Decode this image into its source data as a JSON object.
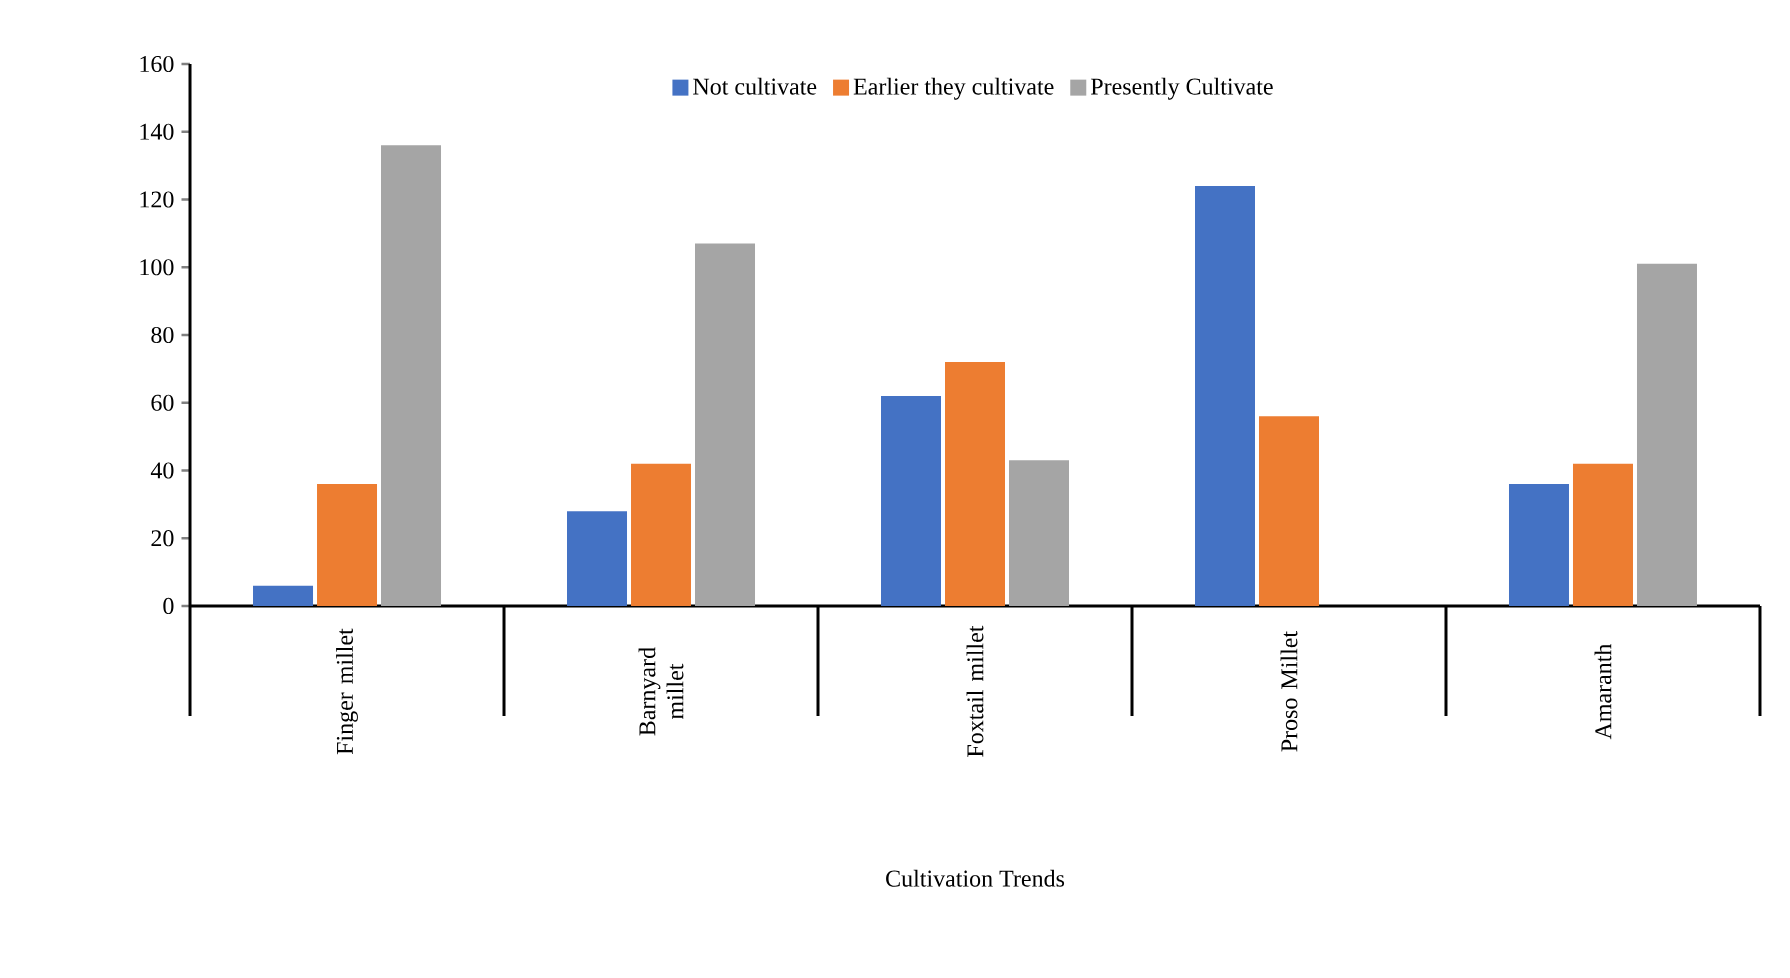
{
  "chart_data": {
    "type": "bar",
    "xlabel": "Cultivation Trends",
    "categories": [
      "Finger millet",
      "Barnyard millet",
      "Foxtail millet",
      "Proso Millet",
      "Amaranth"
    ],
    "series": [
      {
        "name": "Not cultivate",
        "color": "#4472c4",
        "values": [
          6,
          28,
          62,
          124,
          36
        ]
      },
      {
        "name": "Earlier they cultivate",
        "color": "#ed7d31",
        "values": [
          36,
          42,
          72,
          56,
          42
        ]
      },
      {
        "name": "Presently Cultivate",
        "color": "#a5a5a5",
        "values": [
          136,
          107,
          43,
          0,
          101
        ]
      }
    ],
    "ylim": [
      0,
      160
    ],
    "yticks": [
      0,
      20,
      40,
      60,
      80,
      100,
      120,
      140,
      160
    ],
    "legend": "top",
    "grid": false
  }
}
